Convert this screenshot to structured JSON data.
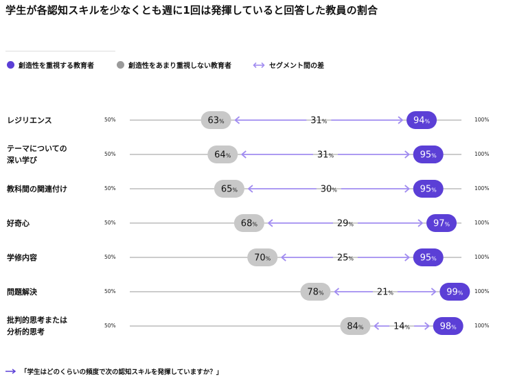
{
  "title": "学生が各認知スキルを少なくとも週に1回は発揮していると回答した教員の割合",
  "legend": {
    "high": "創造性を重視する教育者",
    "low": "創造性をあまり重視しない教育者",
    "gap": "セグメント間の差"
  },
  "colors": {
    "high": "#5b3fd6",
    "low": "#c8c8c8",
    "gap": "#a18cf0",
    "track": "#9a9a9a"
  },
  "icons": {
    "legend_gap": "double-arrow-icon",
    "footnote": "right-arrow-icon"
  },
  "axis": {
    "min_label": "50%",
    "max_label": "100%"
  },
  "chart_data": {
    "type": "dumbbell",
    "xlim": [
      50,
      100
    ],
    "categories": [
      [
        "レジリエンス"
      ],
      [
        "テーマについての",
        "深い学び"
      ],
      [
        "教科間の関連付け"
      ],
      [
        "好奇心"
      ],
      [
        "学修内容"
      ],
      [
        "問題解決"
      ],
      [
        "批判的思考または",
        "分析的思考"
      ]
    ],
    "series": [
      {
        "name": "創造性をあまり重視しない教育者",
        "values": [
          63,
          64,
          65,
          68,
          70,
          78,
          84
        ]
      },
      {
        "name": "創造性を重視する教育者",
        "values": [
          94,
          95,
          95,
          97,
          95,
          99,
          98
        ]
      }
    ],
    "gap_values": [
      31,
      31,
      30,
      29,
      25,
      21,
      14
    ],
    "value_suffix": "%",
    "legend_position": "top-left"
  },
  "footnote": "「学生はどのくらいの頻度で次の認知スキルを発揮していますか？」"
}
